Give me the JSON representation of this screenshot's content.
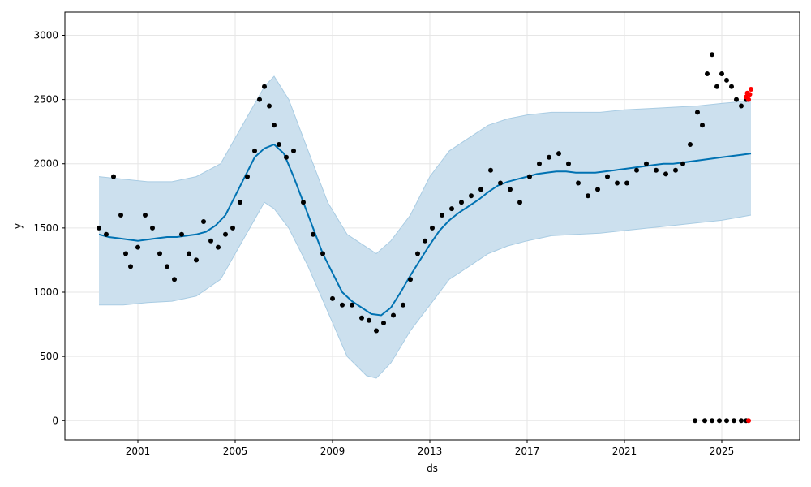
{
  "chart_data": {
    "type": "scatter",
    "xlabel": "ds",
    "ylabel": "y",
    "x_ticks": [
      "2001",
      "2005",
      "2009",
      "2013",
      "2017",
      "2021",
      "2025"
    ],
    "y_ticks": [
      0,
      500,
      1000,
      1500,
      2000,
      2500,
      3000
    ],
    "xlim": [
      1998.0,
      2028.2
    ],
    "ylim": [
      -150,
      3180
    ],
    "grid": true,
    "colors": {
      "observed": "#000000",
      "forecast_points": "#ff0000",
      "forecast_line": "#0072b2",
      "band_fill": "#cce0ee",
      "band_edge": "#a9cce3",
      "grid": "#e6e6e6"
    },
    "series": [
      {
        "role": "forecast_line",
        "x": [
          1999.4,
          1999.8,
          2000.2,
          2000.6,
          2001.0,
          2001.4,
          2001.8,
          2002.2,
          2002.6,
          2003.0,
          2003.4,
          2003.8,
          2004.2,
          2004.6,
          2005.0,
          2005.4,
          2005.8,
          2006.2,
          2006.6,
          2007.0,
          2007.4,
          2007.8,
          2008.2,
          2008.6,
          2009.0,
          2009.4,
          2009.8,
          2010.2,
          2010.6,
          2011.0,
          2011.4,
          2011.8,
          2012.2,
          2012.6,
          2013.0,
          2013.4,
          2013.8,
          2014.2,
          2014.6,
          2015.0,
          2015.4,
          2015.8,
          2016.2,
          2016.6,
          2017.0,
          2017.4,
          2017.8,
          2018.2,
          2018.6,
          2019.0,
          2019.4,
          2019.8,
          2020.2,
          2020.6,
          2021.0,
          2021.4,
          2021.8,
          2022.2,
          2022.6,
          2023.0,
          2023.4,
          2023.8,
          2024.2,
          2024.6,
          2025.0,
          2025.4,
          2025.8,
          2026.2
        ],
        "y": [
          1450,
          1430,
          1420,
          1410,
          1400,
          1410,
          1420,
          1430,
          1430,
          1440,
          1450,
          1470,
          1520,
          1600,
          1750,
          1900,
          2050,
          2120,
          2150,
          2080,
          1900,
          1700,
          1500,
          1300,
          1150,
          1000,
          930,
          880,
          830,
          820,
          880,
          1000,
          1130,
          1250,
          1370,
          1480,
          1560,
          1620,
          1670,
          1720,
          1780,
          1830,
          1860,
          1880,
          1900,
          1920,
          1930,
          1940,
          1940,
          1930,
          1930,
          1930,
          1940,
          1950,
          1960,
          1970,
          1980,
          1990,
          2000,
          2000,
          2010,
          2020,
          2030,
          2040,
          2050,
          2060,
          2070,
          2080
        ]
      },
      {
        "role": "band_upper",
        "x": [
          1999.4,
          2000.4,
          2001.4,
          2002.4,
          2003.4,
          2004.4,
          2005.0,
          2005.6,
          2006.2,
          2006.6,
          2007.2,
          2008.0,
          2008.8,
          2009.6,
          2010.4,
          2010.8,
          2011.4,
          2012.2,
          2013.0,
          2013.8,
          2014.6,
          2015.4,
          2016.2,
          2017.0,
          2018.0,
          2019.0,
          2020.0,
          2021.0,
          2022.0,
          2023.0,
          2024.0,
          2025.0,
          2025.6,
          2026.2
        ],
        "y": [
          1900,
          1880,
          1860,
          1860,
          1900,
          2000,
          2200,
          2400,
          2600,
          2680,
          2500,
          2100,
          1700,
          1450,
          1350,
          1300,
          1400,
          1600,
          1900,
          2100,
          2200,
          2300,
          2350,
          2380,
          2400,
          2400,
          2400,
          2420,
          2430,
          2440,
          2450,
          2470,
          2480,
          2500
        ]
      },
      {
        "role": "band_lower",
        "x": [
          1999.4,
          2000.4,
          2001.4,
          2002.4,
          2003.4,
          2004.4,
          2005.0,
          2005.6,
          2006.2,
          2006.6,
          2007.2,
          2008.0,
          2008.8,
          2009.6,
          2010.4,
          2010.8,
          2011.4,
          2012.2,
          2013.0,
          2013.8,
          2014.6,
          2015.4,
          2016.2,
          2017.0,
          2018.0,
          2019.0,
          2020.0,
          2021.0,
          2022.0,
          2023.0,
          2024.0,
          2025.0,
          2025.6,
          2026.2
        ],
        "y": [
          900,
          900,
          920,
          930,
          970,
          1100,
          1300,
          1500,
          1700,
          1650,
          1500,
          1200,
          850,
          500,
          350,
          330,
          450,
          700,
          900,
          1100,
          1200,
          1300,
          1360,
          1400,
          1440,
          1450,
          1460,
          1480,
          1500,
          1520,
          1540,
          1560,
          1580,
          1600
        ]
      },
      {
        "role": "observed",
        "x": [
          1999.4,
          1999.7,
          2000.0,
          2000.3,
          2000.5,
          2000.7,
          2001.0,
          2001.3,
          2001.6,
          2001.9,
          2002.2,
          2002.5,
          2002.8,
          2003.1,
          2003.4,
          2003.7,
          2004.0,
          2004.3,
          2004.6,
          2004.9,
          2005.2,
          2005.5,
          2005.8,
          2006.0,
          2006.2,
          2006.4,
          2006.6,
          2006.8,
          2007.1,
          2007.4,
          2007.8,
          2008.2,
          2008.6,
          2009.0,
          2009.4,
          2009.8,
          2010.2,
          2010.5,
          2010.8,
          2011.1,
          2011.5,
          2011.9,
          2012.2,
          2012.5,
          2012.8,
          2013.1,
          2013.5,
          2013.9,
          2014.3,
          2014.7,
          2015.1,
          2015.5,
          2015.9,
          2016.3,
          2016.7,
          2017.1,
          2017.5,
          2017.9,
          2018.3,
          2018.7,
          2019.1,
          2019.5,
          2019.9,
          2020.3,
          2020.7,
          2021.1,
          2021.5,
          2021.9,
          2022.3,
          2022.7,
          2023.1,
          2023.4,
          2023.7,
          2024.0,
          2024.2,
          2024.4,
          2024.6,
          2024.8,
          2025.0,
          2025.2,
          2025.4,
          2025.6,
          2025.8,
          2026.0,
          2023.9,
          2024.3,
          2024.6,
          2024.9,
          2025.2,
          2025.5,
          2025.8,
          2026.0
        ],
        "y": [
          1500,
          1450,
          1900,
          1600,
          1300,
          1200,
          1350,
          1600,
          1500,
          1300,
          1200,
          1100,
          1450,
          1300,
          1250,
          1550,
          1400,
          1350,
          1450,
          1500,
          1700,
          1900,
          2100,
          2500,
          2600,
          2450,
          2300,
          2150,
          2050,
          2100,
          1700,
          1450,
          1300,
          950,
          900,
          900,
          800,
          780,
          700,
          760,
          820,
          900,
          1100,
          1300,
          1400,
          1500,
          1600,
          1650,
          1700,
          1750,
          1800,
          1950,
          1850,
          1800,
          1700,
          1900,
          2000,
          2050,
          2080,
          2000,
          1850,
          1750,
          1800,
          1900,
          1850,
          1850,
          1950,
          2000,
          1950,
          1920,
          1950,
          2000,
          2150,
          2400,
          2300,
          2700,
          2850,
          2600,
          2700,
          2650,
          2600,
          2500,
          2450,
          2500,
          0,
          0,
          0,
          0,
          0,
          0,
          0,
          0
        ]
      },
      {
        "role": "forecast_points",
        "x": [
          2026.0,
          2026.05,
          2026.1,
          2026.15,
          2026.2,
          2026.1
        ],
        "y": [
          2520,
          2550,
          2500,
          2540,
          2580,
          0
        ]
      }
    ]
  }
}
